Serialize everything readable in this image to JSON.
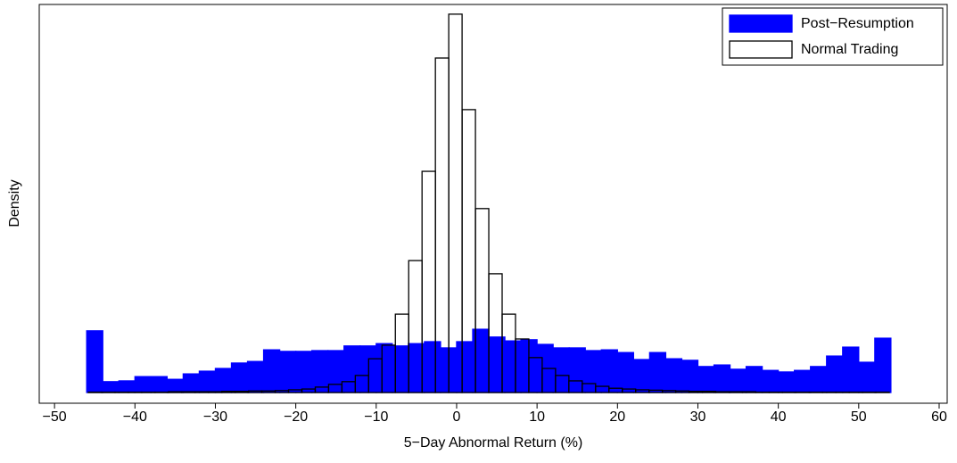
{
  "chart_data": {
    "type": "histogram",
    "xlabel": "5−Day Abnormal Return (%)",
    "ylabel": "Density",
    "xlim": [
      -51.9,
      61
    ],
    "ylim": [
      -2.76,
      100
    ],
    "xticks": [
      {
        "value": -50,
        "label": "−50"
      },
      {
        "value": -40,
        "label": "−40"
      },
      {
        "value": -30,
        "label": "−30"
      },
      {
        "value": -20,
        "label": "−20"
      },
      {
        "value": -10,
        "label": "−10"
      },
      0,
      10,
      20,
      30,
      40,
      50,
      60
    ],
    "legend": "upper right",
    "series": [
      {
        "name": "Post−Resumption",
        "color": "#0000ff",
        "edgecolor": "#0000ff",
        "bins": [
          -46,
          -44,
          -42,
          -40,
          -38,
          -36,
          -34,
          -32,
          -30,
          -28,
          -26,
          -24,
          -22,
          -20,
          -18,
          -16,
          -14,
          -12,
          -10,
          -8,
          -6,
          -4,
          -2,
          0,
          2,
          4,
          6,
          8,
          10,
          12,
          14,
          16,
          18,
          20,
          22,
          24,
          26,
          28,
          30,
          32,
          34,
          36,
          38,
          40,
          42,
          44,
          46,
          48,
          50,
          52,
          54
        ],
        "values": [
          15.9,
          2.8,
          3.0,
          4.1,
          4.1,
          3.4,
          4.8,
          5.5,
          6.2,
          7.6,
          8.0,
          11.0,
          10.6,
          10.6,
          10.8,
          10.8,
          12.0,
          12.0,
          12.6,
          12.0,
          12.6,
          13.1,
          11.5,
          13.1,
          16.3,
          14.3,
          13.3,
          13.6,
          12.4,
          11.5,
          11.5,
          10.8,
          11.0,
          10.3,
          8.5,
          10.3,
          8.7,
          8.3,
          6.7,
          7.1,
          6.0,
          6.7,
          5.7,
          5.3,
          5.7,
          6.7,
          9.4,
          11.7,
          7.8,
          14.0
        ]
      },
      {
        "name": "Normal Trading",
        "color": "none",
        "edgecolor": "#000000",
        "bins": [
          -45.8,
          -44.14,
          -42.48,
          -40.82,
          -39.16,
          -37.5,
          -35.84,
          -34.18,
          -32.52,
          -30.86,
          -29.2,
          -27.54,
          -25.88,
          -24.22,
          -22.56,
          -20.9,
          -19.24,
          -17.58,
          -15.92,
          -14.26,
          -12.6,
          -10.94,
          -9.28,
          -7.62,
          -5.96,
          -4.3,
          -2.64,
          -0.98,
          0.68,
          2.34,
          4.0,
          5.66,
          7.32,
          8.98,
          10.64,
          12.3,
          13.96,
          15.62,
          17.28,
          18.94,
          20.6,
          22.26,
          23.92,
          25.58,
          27.24,
          28.9,
          30.56,
          32.22,
          33.88,
          35.54,
          37.2,
          38.86,
          40.52,
          42.18,
          43.84,
          45.5,
          47.16,
          48.82,
          50.48,
          52.14,
          53.8
        ],
        "values": [
          0.1,
          0.1,
          0.1,
          0.1,
          0.1,
          0.1,
          0.2,
          0.2,
          0.2,
          0.2,
          0.3,
          0.3,
          0.4,
          0.4,
          0.5,
          0.7,
          0.9,
          1.4,
          2.1,
          2.8,
          4.4,
          8.7,
          12.2,
          20.2,
          34.0,
          57.0,
          86.2,
          97.5,
          72.9,
          47.4,
          30.6,
          20.2,
          13.8,
          9.0,
          6.2,
          4.4,
          3.0,
          2.3,
          1.6,
          1.1,
          0.9,
          0.7,
          0.6,
          0.5,
          0.4,
          0.3,
          0.3,
          0.2,
          0.2,
          0.2,
          0.1,
          0.1,
          0.1,
          0.1,
          0.1,
          0.1,
          0.1,
          0.1,
          0.1,
          0.1
        ]
      }
    ]
  }
}
